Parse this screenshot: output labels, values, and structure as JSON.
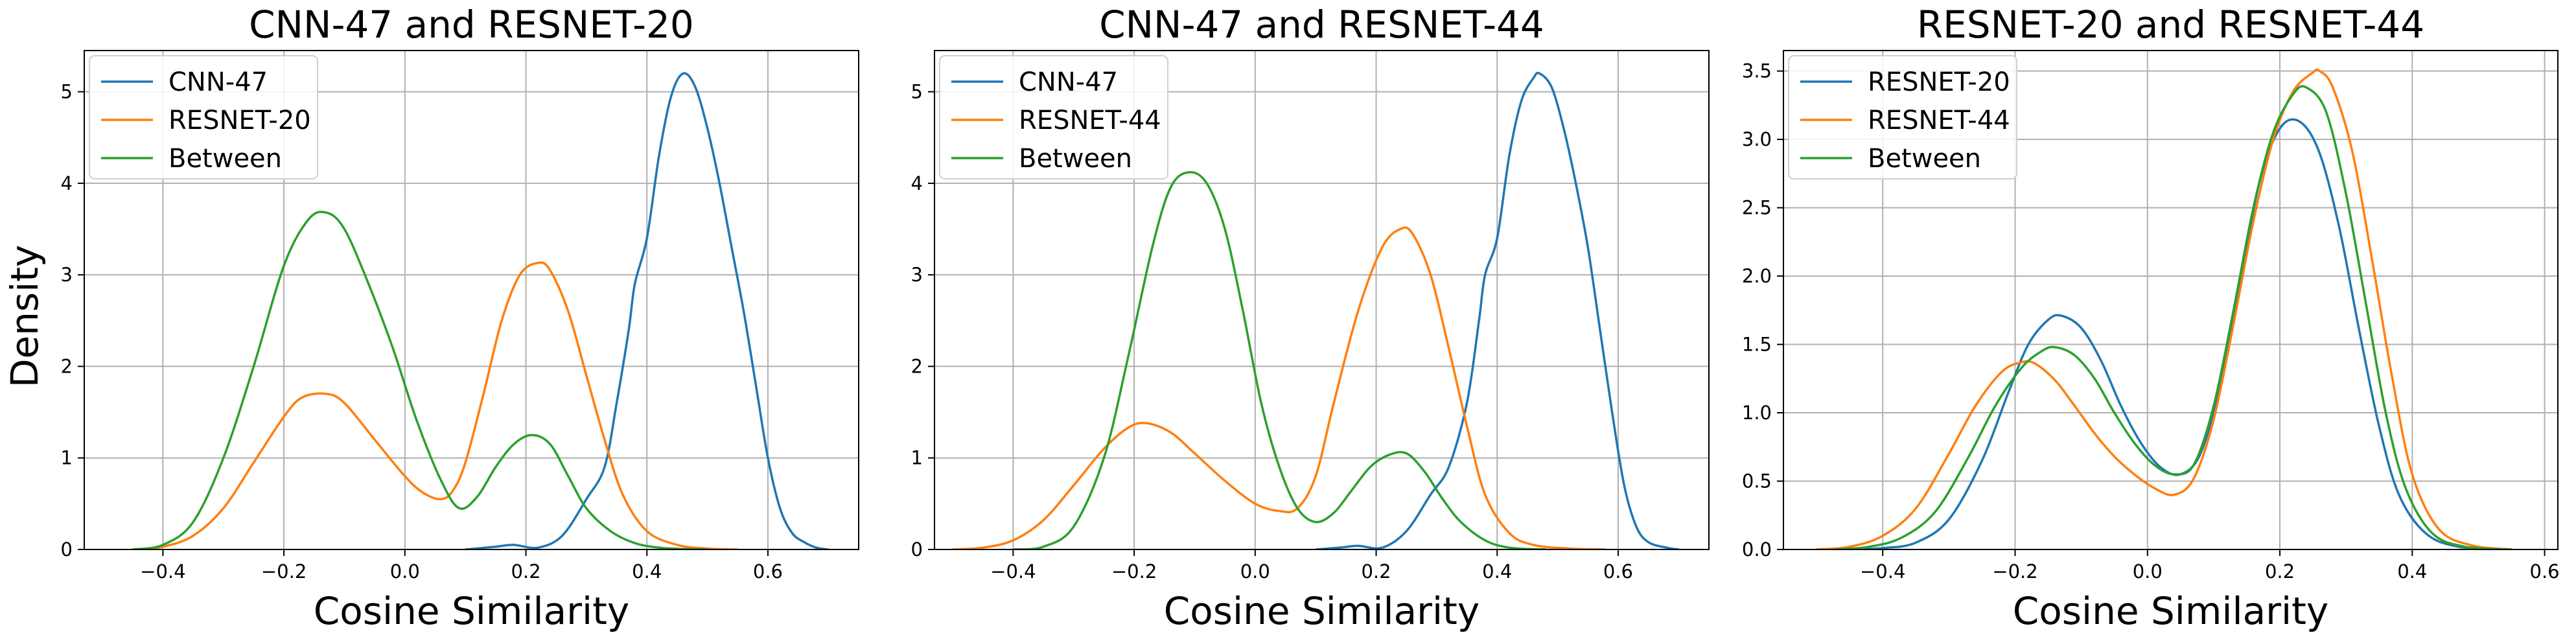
{
  "figure": {
    "ylabel": "Density"
  },
  "chart_data": [
    {
      "type": "line",
      "title": "CNN-47 and RESNET-20",
      "xlabel": "Cosine Similarity",
      "ylabel": "Density",
      "xlim": [
        -0.53,
        0.75
      ],
      "ylim": [
        0,
        5.45
      ],
      "xticks": [
        -0.4,
        -0.2,
        0.0,
        0.2,
        0.4,
        0.6
      ],
      "xtick_labels": [
        "−0.4",
        "−0.2",
        "0.0",
        "0.2",
        "0.4",
        "0.6"
      ],
      "yticks": [
        0,
        1,
        2,
        3,
        4,
        5
      ],
      "ytick_labels": [
        "0",
        "1",
        "2",
        "3",
        "4",
        "5"
      ],
      "grid": true,
      "legend_position": "upper-left",
      "series": [
        {
          "name": "CNN-47",
          "color": "#1f77b4",
          "x": [
            0.1,
            0.15,
            0.18,
            0.22,
            0.26,
            0.3,
            0.33,
            0.35,
            0.37,
            0.38,
            0.4,
            0.42,
            0.44,
            0.46,
            0.48,
            0.5,
            0.52,
            0.54,
            0.56,
            0.58,
            0.6,
            0.62,
            0.64,
            0.66,
            0.68,
            0.7
          ],
          "y": [
            0,
            0.03,
            0.05,
            0.02,
            0.15,
            0.55,
            0.9,
            1.6,
            2.4,
            2.9,
            3.4,
            4.3,
            4.95,
            5.2,
            5.05,
            4.6,
            4.0,
            3.3,
            2.6,
            1.8,
            1.0,
            0.45,
            0.18,
            0.08,
            0.02,
            0
          ]
        },
        {
          "name": "RESNET-20",
          "color": "#ff7f0e",
          "x": [
            -0.45,
            -0.4,
            -0.35,
            -0.3,
            -0.25,
            -0.2,
            -0.17,
            -0.13,
            -0.1,
            -0.05,
            0.0,
            0.03,
            0.06,
            0.08,
            0.1,
            0.13,
            0.16,
            0.19,
            0.22,
            0.24,
            0.27,
            0.3,
            0.33,
            0.36,
            0.4,
            0.45,
            0.5,
            0.55
          ],
          "y": [
            0,
            0.03,
            0.15,
            0.45,
            0.95,
            1.45,
            1.66,
            1.7,
            1.6,
            1.2,
            0.8,
            0.62,
            0.55,
            0.65,
            0.95,
            1.7,
            2.5,
            3.0,
            3.13,
            3.05,
            2.6,
            1.9,
            1.2,
            0.6,
            0.2,
            0.05,
            0.01,
            0
          ]
        },
        {
          "name": "Between",
          "color": "#2ca02c",
          "x": [
            -0.45,
            -0.4,
            -0.35,
            -0.3,
            -0.25,
            -0.2,
            -0.16,
            -0.13,
            -0.1,
            -0.06,
            -0.02,
            0.02,
            0.06,
            0.09,
            0.12,
            0.15,
            0.18,
            0.21,
            0.24,
            0.27,
            0.3,
            0.34,
            0.38,
            0.42,
            0.46,
            0.5
          ],
          "y": [
            0,
            0.05,
            0.3,
            1.0,
            2.0,
            3.1,
            3.6,
            3.68,
            3.5,
            2.9,
            2.2,
            1.4,
            0.75,
            0.45,
            0.58,
            0.9,
            1.15,
            1.25,
            1.15,
            0.8,
            0.45,
            0.2,
            0.07,
            0.02,
            0.005,
            0
          ]
        }
      ]
    },
    {
      "type": "line",
      "title": "CNN-47 and RESNET-44",
      "xlabel": "Cosine Similarity",
      "xlim": [
        -0.53,
        0.75
      ],
      "ylim": [
        0,
        5.45
      ],
      "xticks": [
        -0.4,
        -0.2,
        0.0,
        0.2,
        0.4,
        0.6
      ],
      "xtick_labels": [
        "−0.4",
        "−0.2",
        "0.0",
        "0.2",
        "0.4",
        "0.6"
      ],
      "yticks": [
        0,
        1,
        2,
        3,
        4,
        5
      ],
      "ytick_labels": [
        "0",
        "1",
        "2",
        "3",
        "4",
        "5"
      ],
      "grid": true,
      "legend_position": "upper-left",
      "series": [
        {
          "name": "CNN-47",
          "color": "#1f77b4",
          "x": [
            0.1,
            0.14,
            0.17,
            0.21,
            0.25,
            0.29,
            0.32,
            0.35,
            0.37,
            0.38,
            0.4,
            0.42,
            0.44,
            0.46,
            0.47,
            0.49,
            0.51,
            0.53,
            0.55,
            0.57,
            0.59,
            0.61,
            0.63,
            0.65,
            0.68,
            0.7
          ],
          "y": [
            0,
            0.02,
            0.04,
            0.02,
            0.2,
            0.6,
            0.9,
            1.6,
            2.5,
            3.0,
            3.4,
            4.3,
            4.9,
            5.15,
            5.2,
            5.05,
            4.6,
            4.0,
            3.3,
            2.4,
            1.5,
            0.7,
            0.25,
            0.08,
            0.02,
            0
          ]
        },
        {
          "name": "RESNET-44",
          "color": "#ff7f0e",
          "x": [
            -0.5,
            -0.45,
            -0.4,
            -0.35,
            -0.3,
            -0.25,
            -0.21,
            -0.18,
            -0.14,
            -0.1,
            -0.05,
            0.0,
            0.04,
            0.07,
            0.1,
            0.13,
            0.17,
            0.21,
            0.24,
            0.26,
            0.29,
            0.32,
            0.35,
            0.38,
            0.42,
            0.46,
            0.52,
            0.58
          ],
          "y": [
            0,
            0.02,
            0.1,
            0.32,
            0.7,
            1.1,
            1.33,
            1.38,
            1.28,
            1.05,
            0.75,
            0.5,
            0.42,
            0.45,
            0.8,
            1.6,
            2.6,
            3.3,
            3.5,
            3.45,
            3.0,
            2.2,
            1.35,
            0.6,
            0.18,
            0.05,
            0.01,
            0
          ]
        },
        {
          "name": "Between",
          "color": "#2ca02c",
          "x": [
            -0.4,
            -0.35,
            -0.3,
            -0.25,
            -0.21,
            -0.17,
            -0.14,
            -0.11,
            -0.08,
            -0.05,
            -0.02,
            0.01,
            0.04,
            0.07,
            0.1,
            0.13,
            0.16,
            0.19,
            0.22,
            0.25,
            0.28,
            0.31,
            0.34,
            0.38,
            0.42,
            0.48
          ],
          "y": [
            0,
            0.03,
            0.25,
            1.0,
            2.1,
            3.3,
            3.95,
            4.12,
            4.0,
            3.5,
            2.6,
            1.6,
            0.9,
            0.45,
            0.3,
            0.4,
            0.65,
            0.9,
            1.03,
            1.05,
            0.85,
            0.55,
            0.3,
            0.1,
            0.02,
            0
          ]
        }
      ]
    },
    {
      "type": "line",
      "title": "RESNET-20 and RESNET-44",
      "xlabel": "Cosine Similarity",
      "xlim": [
        -0.55,
        0.62
      ],
      "ylim": [
        0,
        3.65
      ],
      "xticks": [
        -0.4,
        -0.2,
        0.0,
        0.2,
        0.4,
        0.6
      ],
      "xtick_labels": [
        "−0.4",
        "−0.2",
        "0.0",
        "0.2",
        "0.4",
        "0.6"
      ],
      "yticks": [
        0,
        0.5,
        1.0,
        1.5,
        2.0,
        2.5,
        3.0,
        3.5
      ],
      "ytick_labels": [
        "0.0",
        "0.5",
        "1.0",
        "1.5",
        "2.0",
        "2.5",
        "3.0",
        "3.5"
      ],
      "grid": true,
      "legend_position": "upper-left",
      "series": [
        {
          "name": "RESNET-20",
          "color": "#1f77b4",
          "x": [
            -0.45,
            -0.4,
            -0.35,
            -0.3,
            -0.25,
            -0.21,
            -0.18,
            -0.15,
            -0.13,
            -0.1,
            -0.07,
            -0.04,
            -0.01,
            0.02,
            0.05,
            0.08,
            0.11,
            0.14,
            0.17,
            0.2,
            0.23,
            0.26,
            0.29,
            0.32,
            0.35,
            0.38,
            0.42,
            0.47,
            0.55
          ],
          "y": [
            0,
            0.01,
            0.05,
            0.22,
            0.65,
            1.15,
            1.5,
            1.68,
            1.71,
            1.62,
            1.38,
            1.05,
            0.78,
            0.6,
            0.55,
            0.7,
            1.2,
            1.95,
            2.7,
            3.08,
            3.13,
            2.9,
            2.35,
            1.6,
            0.9,
            0.4,
            0.12,
            0.02,
            0
          ]
        },
        {
          "name": "RESNET-44",
          "color": "#ff7f0e",
          "x": [
            -0.5,
            -0.45,
            -0.4,
            -0.35,
            -0.3,
            -0.26,
            -0.22,
            -0.19,
            -0.17,
            -0.14,
            -0.11,
            -0.08,
            -0.05,
            -0.02,
            0.01,
            0.04,
            0.07,
            0.1,
            0.13,
            0.16,
            0.19,
            0.22,
            0.25,
            0.26,
            0.28,
            0.31,
            0.34,
            0.37,
            0.4,
            0.44,
            0.49,
            0.55
          ],
          "y": [
            0,
            0.02,
            0.1,
            0.3,
            0.7,
            1.05,
            1.3,
            1.37,
            1.36,
            1.24,
            1.05,
            0.85,
            0.68,
            0.55,
            0.45,
            0.4,
            0.52,
            0.95,
            1.65,
            2.4,
            3.0,
            3.35,
            3.49,
            3.5,
            3.38,
            2.9,
            2.1,
            1.25,
            0.55,
            0.15,
            0.03,
            0
          ]
        },
        {
          "name": "Between",
          "color": "#2ca02c",
          "x": [
            -0.47,
            -0.42,
            -0.37,
            -0.32,
            -0.27,
            -0.23,
            -0.19,
            -0.16,
            -0.14,
            -0.11,
            -0.08,
            -0.05,
            -0.02,
            0.01,
            0.04,
            0.07,
            0.1,
            0.13,
            0.16,
            0.19,
            0.22,
            0.24,
            0.27,
            0.3,
            0.33,
            0.36,
            0.39,
            0.43,
            0.48,
            0.55
          ],
          "y": [
            0,
            0.02,
            0.09,
            0.28,
            0.68,
            1.05,
            1.33,
            1.45,
            1.48,
            1.42,
            1.25,
            1.0,
            0.78,
            0.62,
            0.55,
            0.62,
            1.05,
            1.75,
            2.5,
            3.05,
            3.33,
            3.38,
            3.2,
            2.6,
            1.8,
            1.0,
            0.45,
            0.12,
            0.02,
            0
          ]
        }
      ]
    }
  ]
}
